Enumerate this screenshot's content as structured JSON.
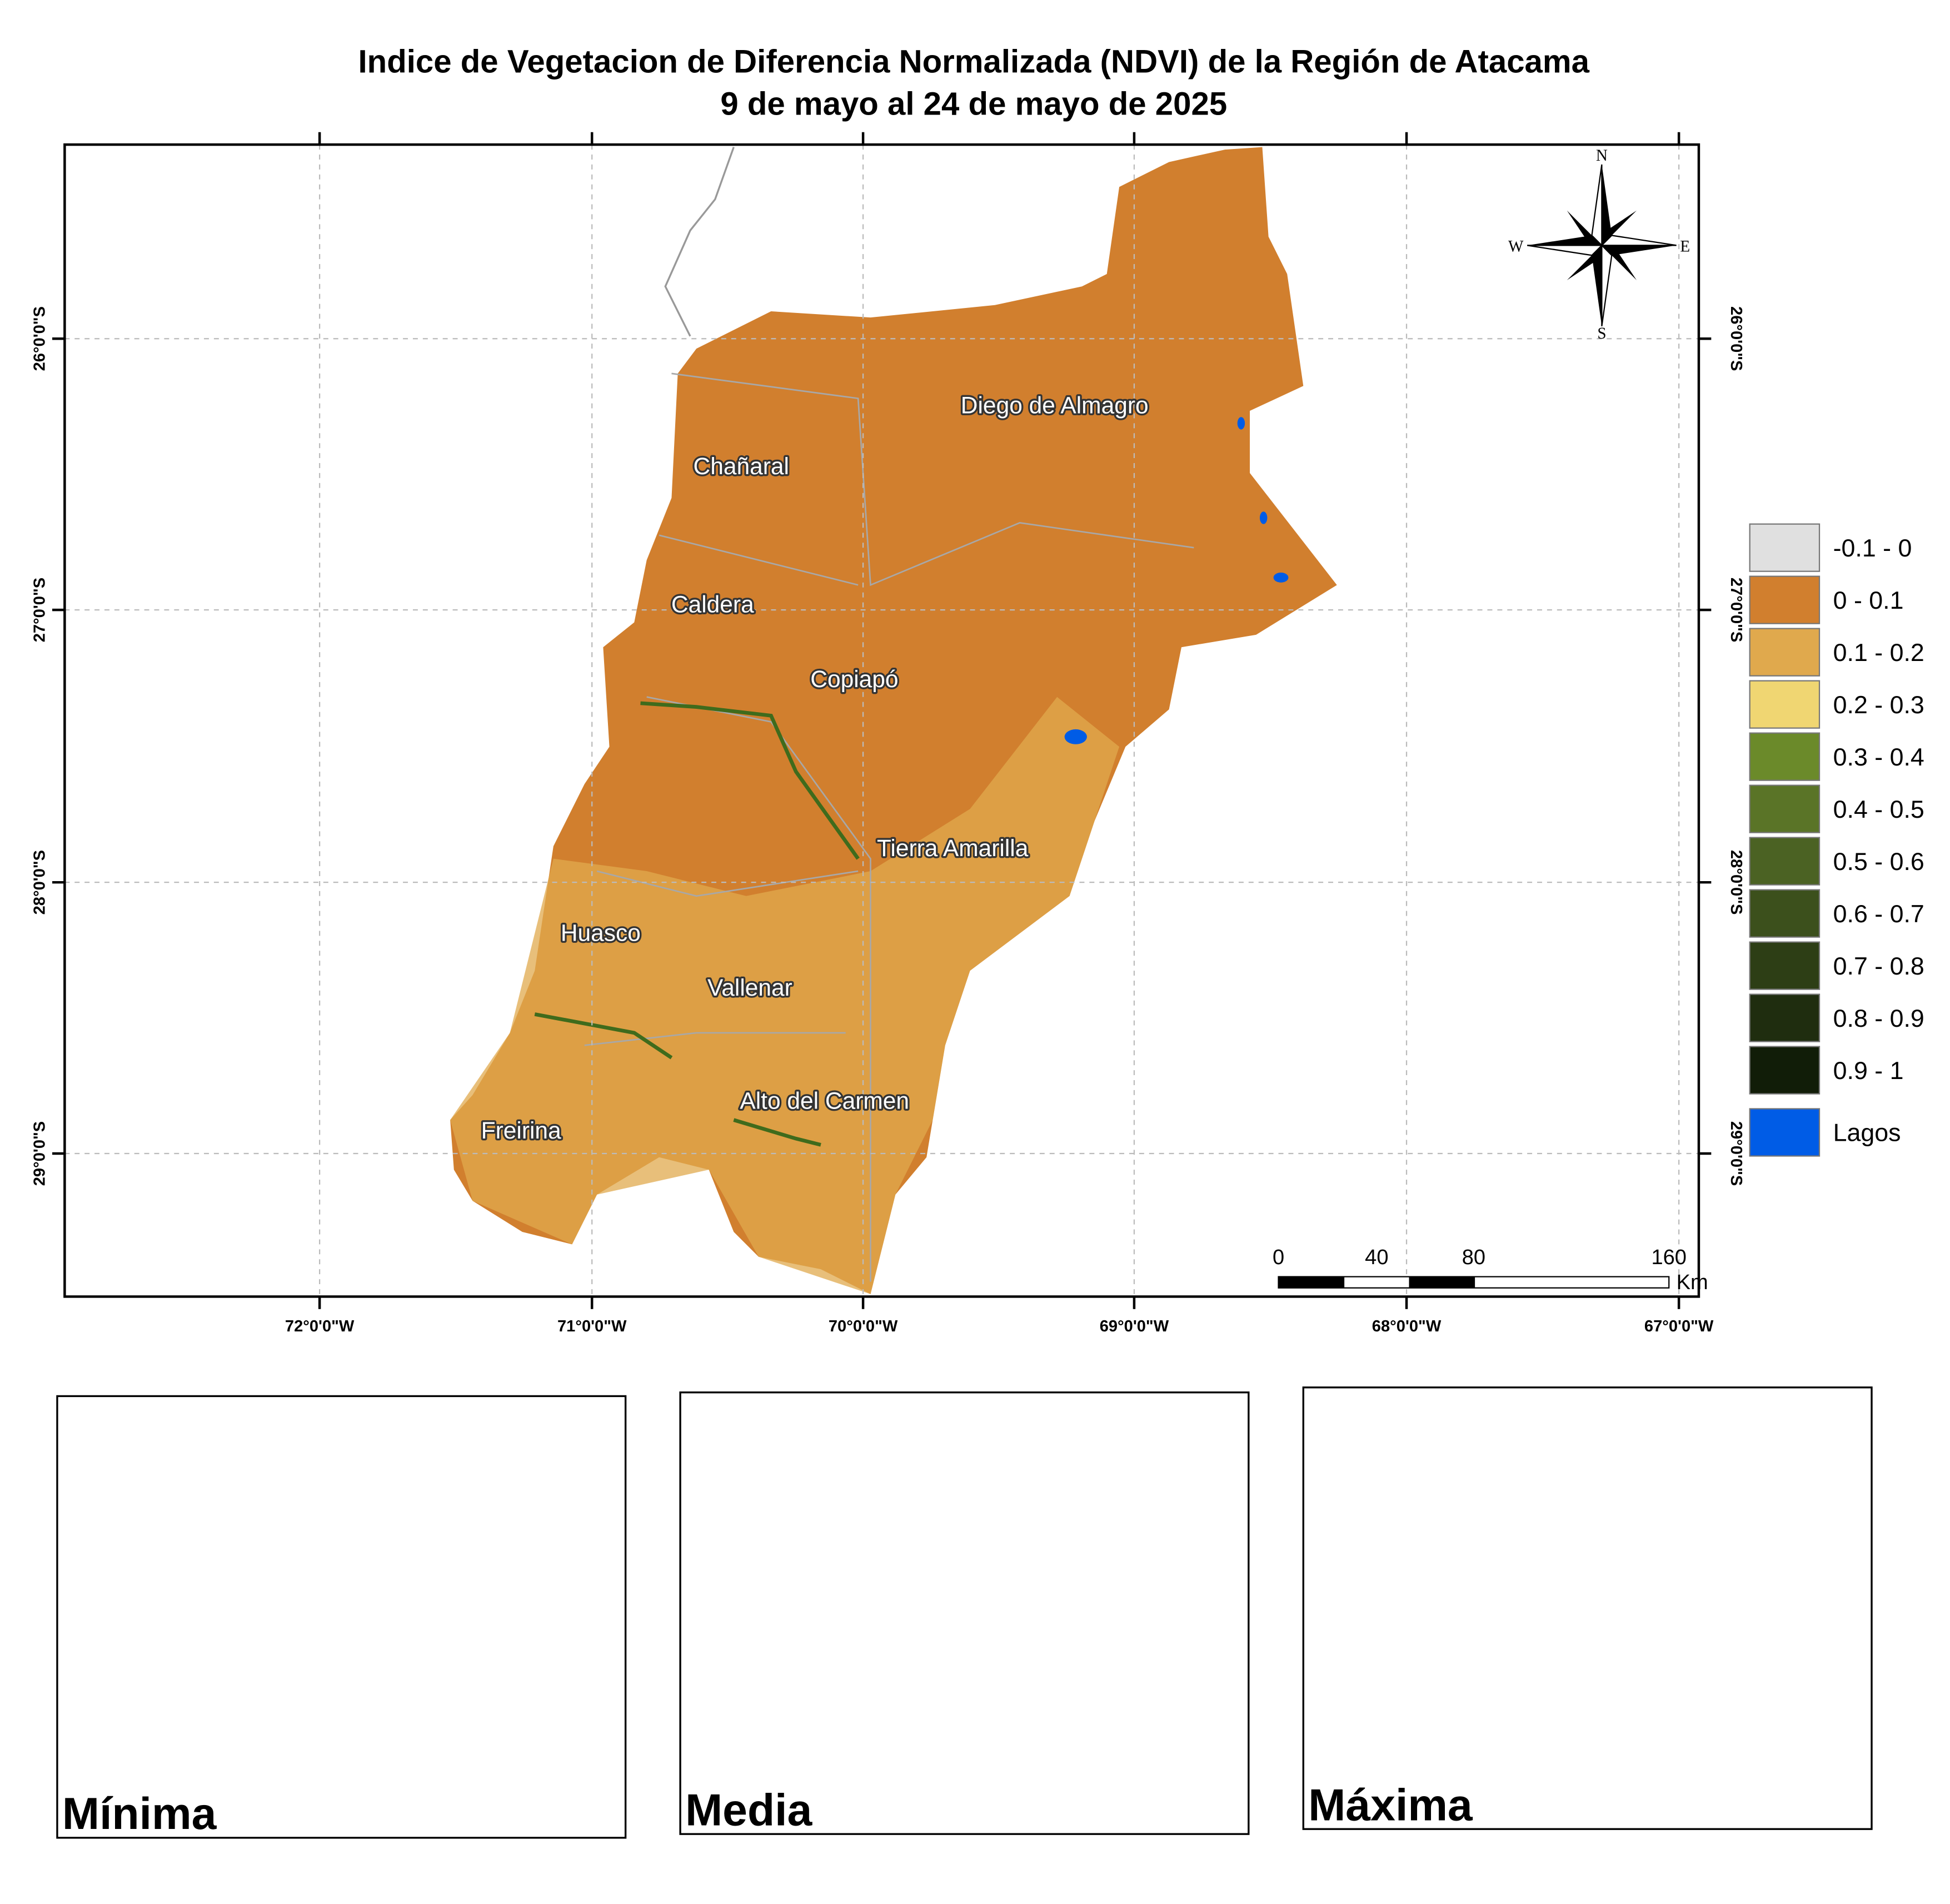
{
  "header": {
    "title": [
      "Indice de Vegetacion de Diferencia Normalizada (NDVI) de la Región de Atacama",
      "9 de mayo al 24 de mayo de 2025"
    ]
  },
  "map": {
    "longitude_labels": [
      "72°0'0\"W",
      "71°0'0\"W",
      "70°0'0\"W",
      "69°0'0\"W",
      "68°0'0\"W",
      "67°0'0\"W"
    ],
    "latitude_labels": [
      "26°0'0\"S",
      "27°0'0\"S",
      "28°0'0\"S",
      "29°0'0\"S"
    ],
    "places": [
      "Diego de Almagro",
      "Chañaral",
      "Caldera",
      "Copiapó",
      "Tierra Amarilla",
      "Huasco",
      "Vallenar",
      "Alto del Carmen",
      "Freirina"
    ],
    "compass": [
      "N",
      "E",
      "S",
      "W"
    ],
    "scale_bar": {
      "labels": [
        "0",
        "40",
        "80",
        "160"
      ],
      "unit": "Km"
    }
  },
  "legend": {
    "items": [
      {
        "label": "-0.1 - 0",
        "color": "#e0e0e0"
      },
      {
        "label": "0 - 0.1",
        "color": "#d17f2e"
      },
      {
        "label": "0.1 - 0.2",
        "color": "#e0a94d"
      },
      {
        "label": "0.2 - 0.3",
        "color": "#f0d672"
      },
      {
        "label": "0.3 - 0.4",
        "color": "#6b8a2a"
      },
      {
        "label": "0.4 - 0.5",
        "color": "#5a7427"
      },
      {
        "label": "0.5 - 0.6",
        "color": "#4b6223"
      },
      {
        "label": "0.6 - 0.7",
        "color": "#3c501c"
      },
      {
        "label": "0.7 - 0.8",
        "color": "#2d3e15"
      },
      {
        "label": "0.8 - 0.9",
        "color": "#1f2d0f"
      },
      {
        "label": "0.9 - 1",
        "color": "#111d08"
      },
      {
        "label": "Lagos",
        "color": "#005ce6"
      }
    ]
  },
  "insets": [
    "Mínima",
    "Media",
    "Máxima"
  ]
}
